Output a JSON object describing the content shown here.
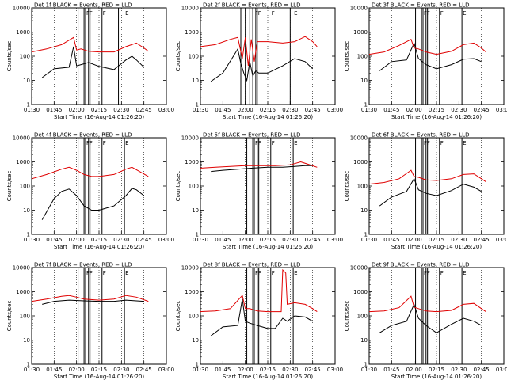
{
  "shared": {
    "title_suffix": "BLACK = Events, RED = LLD",
    "ylabel": "Counts/sec",
    "xlabel": "Start Time (16-Aug-14 01:26:20)",
    "x_ticks": [
      "01:30",
      "01:45",
      "02:00",
      "02:15",
      "02:30",
      "02:45",
      "03:00"
    ],
    "y_ticks": [
      "1",
      "10",
      "100",
      "1000",
      "10000"
    ],
    "colors": {
      "events": "#000000",
      "lld": "#e00000",
      "axis": "#000000"
    }
  },
  "chart_data": [
    {
      "type": "line",
      "title_prefix": "Det 1f",
      "ylim": [
        1,
        10000
      ],
      "yscale": "log",
      "xlim_min": [
        0,
        90
      ],
      "flag_marks": [
        "F",
        "F",
        "F",
        "E"
      ],
      "series": [
        {
          "name": "BLACK = Events",
          "color": "#000000",
          "x": [
            7,
            15,
            25,
            28,
            30,
            33,
            38,
            45,
            55,
            63,
            67,
            70,
            75
          ],
          "values": [
            13,
            30,
            35,
            250,
            40,
            45,
            55,
            38,
            28,
            70,
            100,
            70,
            35
          ]
        },
        {
          "name": "RED = LLD",
          "color": "#e00000",
          "x": [
            0,
            10,
            20,
            28,
            30,
            33,
            38,
            45,
            55,
            63,
            70,
            75,
            78
          ],
          "values": [
            150,
            200,
            300,
            600,
            180,
            200,
            160,
            150,
            150,
            250,
            350,
            220,
            160
          ]
        }
      ],
      "event_x": [
        31,
        35,
        36,
        38,
        39,
        47,
        58
      ]
    },
    {
      "type": "line",
      "title_prefix": "Det 2f",
      "ylim": [
        1,
        10000
      ],
      "yscale": "log",
      "xlim_min": [
        0,
        90
      ],
      "flag_marks": [
        "F",
        "F",
        "F",
        "E"
      ],
      "series": [
        {
          "name": "BLACK = Events",
          "color": "#000000",
          "x": [
            7,
            15,
            22,
            25,
            27,
            29,
            31,
            33,
            35,
            37,
            39,
            45,
            55,
            63,
            70,
            75
          ],
          "values": [
            9,
            20,
            100,
            200,
            50,
            20,
            10,
            60,
            15,
            25,
            20,
            20,
            40,
            80,
            60,
            30
          ]
        },
        {
          "name": "RED = LLD",
          "color": "#e00000",
          "x": [
            0,
            10,
            20,
            25,
            28,
            30,
            32,
            34,
            36,
            38,
            45,
            55,
            63,
            70,
            75,
            78
          ],
          "values": [
            250,
            300,
            500,
            600,
            80,
            600,
            40,
            500,
            60,
            400,
            400,
            350,
            400,
            650,
            400,
            250
          ]
        }
      ],
      "event_x": [
        27,
        30,
        33,
        35,
        37,
        38,
        60
      ]
    },
    {
      "type": "line",
      "title_prefix": "Det 3f",
      "ylim": [
        1,
        10000
      ],
      "yscale": "log",
      "xlim_min": [
        0,
        90
      ],
      "flag_marks": [
        "F",
        "F",
        "F",
        "E"
      ],
      "series": [
        {
          "name": "BLACK = Events",
          "color": "#000000",
          "x": [
            7,
            15,
            25,
            30,
            33,
            38,
            45,
            55,
            63,
            70,
            75
          ],
          "values": [
            25,
            60,
            70,
            350,
            80,
            45,
            30,
            45,
            75,
            80,
            60
          ]
        },
        {
          "name": "RED = LLD",
          "color": "#e00000",
          "x": [
            0,
            10,
            20,
            28,
            30,
            33,
            38,
            45,
            55,
            63,
            70,
            75,
            78
          ],
          "values": [
            120,
            150,
            280,
            500,
            220,
            200,
            150,
            120,
            160,
            300,
            350,
            220,
            150
          ]
        }
      ],
      "event_x": [
        31,
        35,
        36,
        38,
        39,
        47,
        62
      ]
    },
    {
      "type": "line",
      "title_prefix": "Det 4f",
      "ylim": [
        1,
        10000
      ],
      "yscale": "log",
      "xlim_min": [
        0,
        90
      ],
      "flag_marks": [
        "F",
        "F",
        "F",
        "E"
      ],
      "series": [
        {
          "name": "BLACK = Events",
          "color": "#000000",
          "x": [
            7,
            15,
            20,
            25,
            30,
            35,
            40,
            45,
            55,
            63,
            67,
            70,
            75
          ],
          "values": [
            4,
            30,
            60,
            75,
            40,
            15,
            10,
            10,
            15,
            40,
            80,
            70,
            40
          ]
        },
        {
          "name": "RED = LLD",
          "color": "#e00000",
          "x": [
            0,
            10,
            20,
            25,
            30,
            35,
            40,
            45,
            55,
            63,
            67,
            72,
            78
          ],
          "values": [
            200,
            300,
            500,
            600,
            450,
            300,
            250,
            250,
            300,
            500,
            600,
            400,
            250
          ]
        }
      ],
      "event_x": [
        31,
        35,
        36,
        38,
        39,
        47,
        62
      ]
    },
    {
      "type": "line",
      "title_prefix": "Det 5f",
      "ylim": [
        1,
        10000
      ],
      "yscale": "log",
      "xlim_min": [
        0,
        90
      ],
      "flag_marks": [
        "F",
        "F",
        "F",
        "E"
      ],
      "series": [
        {
          "name": "BLACK = Events",
          "color": "#000000",
          "x": [
            7,
            15,
            25,
            35,
            45,
            55,
            63,
            70,
            75
          ],
          "values": [
            400,
            450,
            500,
            550,
            600,
            600,
            650,
            700,
            700
          ]
        },
        {
          "name": "RED = LLD",
          "color": "#e00000",
          "x": [
            0,
            10,
            20,
            30,
            40,
            50,
            60,
            67,
            72,
            78
          ],
          "values": [
            550,
            600,
            650,
            700,
            700,
            700,
            750,
            1000,
            800,
            600
          ]
        }
      ],
      "event_x": [
        31,
        35,
        36,
        38,
        39,
        47,
        62
      ]
    },
    {
      "type": "line",
      "title_prefix": "Det 6f",
      "ylim": [
        1,
        10000
      ],
      "yscale": "log",
      "xlim_min": [
        0,
        90
      ],
      "flag_marks": [
        "F",
        "F",
        "F",
        "E"
      ],
      "series": [
        {
          "name": "BLACK = Events",
          "color": "#000000",
          "x": [
            7,
            15,
            25,
            30,
            33,
            38,
            45,
            55,
            63,
            70,
            75
          ],
          "values": [
            15,
            35,
            60,
            200,
            70,
            50,
            40,
            65,
            120,
            90,
            60
          ]
        },
        {
          "name": "RED = LLD",
          "color": "#e00000",
          "x": [
            0,
            10,
            20,
            28,
            30,
            33,
            38,
            45,
            55,
            63,
            70,
            75,
            78
          ],
          "values": [
            120,
            140,
            200,
            450,
            250,
            230,
            180,
            170,
            200,
            300,
            320,
            200,
            150
          ]
        }
      ],
      "event_x": [
        31,
        35,
        36,
        38,
        39,
        47,
        62
      ]
    },
    {
      "type": "line",
      "title_prefix": "Det 7f",
      "ylim": [
        1,
        10000
      ],
      "yscale": "log",
      "xlim_min": [
        0,
        90
      ],
      "flag_marks": [
        "F",
        "F",
        "F",
        "E"
      ],
      "series": [
        {
          "name": "BLACK = Events",
          "color": "#000000",
          "x": [
            7,
            15,
            25,
            35,
            45,
            55,
            63,
            70,
            75
          ],
          "values": [
            300,
            400,
            450,
            420,
            400,
            400,
            450,
            420,
            400
          ]
        },
        {
          "name": "RED = LLD",
          "color": "#e00000",
          "x": [
            0,
            10,
            20,
            25,
            30,
            35,
            45,
            55,
            63,
            70,
            78
          ],
          "values": [
            400,
            500,
            650,
            700,
            600,
            500,
            450,
            500,
            700,
            600,
            400
          ]
        }
      ],
      "event_x": [
        31,
        35,
        36,
        38,
        39,
        47,
        62
      ]
    },
    {
      "type": "line",
      "title_prefix": "Det 8f",
      "ylim": [
        1,
        10000
      ],
      "yscale": "log",
      "xlim_min": [
        0,
        90
      ],
      "flag_marks": [
        "F",
        "F",
        "F",
        "E"
      ],
      "series": [
        {
          "name": "BLACK = Events",
          "color": "#000000",
          "x": [
            7,
            15,
            25,
            28,
            30,
            33,
            38,
            45,
            50,
            55,
            58,
            63,
            70,
            75
          ],
          "values": [
            15,
            35,
            40,
            500,
            60,
            50,
            40,
            30,
            30,
            80,
            60,
            100,
            90,
            60
          ]
        },
        {
          "name": "RED = LLD",
          "color": "#e00000",
          "x": [
            0,
            10,
            20,
            28,
            30,
            33,
            38,
            45,
            50,
            54,
            55,
            57,
            58,
            63,
            70,
            75,
            78
          ],
          "values": [
            150,
            160,
            200,
            700,
            200,
            200,
            160,
            150,
            150,
            150,
            8000,
            6000,
            300,
            350,
            300,
            200,
            150
          ]
        }
      ],
      "event_x": [
        31,
        35,
        36,
        38,
        39,
        47,
        62
      ]
    },
    {
      "type": "line",
      "title_prefix": "Det 9f",
      "ylim": [
        1,
        10000
      ],
      "yscale": "log",
      "xlim_min": [
        0,
        90
      ],
      "flag_marks": [
        "F",
        "F",
        "F",
        "E"
      ],
      "series": [
        {
          "name": "BLACK = Events",
          "color": "#000000",
          "x": [
            7,
            15,
            25,
            30,
            33,
            38,
            45,
            55,
            63,
            70,
            75
          ],
          "values": [
            20,
            40,
            60,
            300,
            80,
            40,
            20,
            45,
            80,
            60,
            40
          ]
        },
        {
          "name": "RED = LLD",
          "color": "#e00000",
          "x": [
            0,
            10,
            20,
            28,
            30,
            33,
            38,
            45,
            55,
            63,
            70,
            75,
            78
          ],
          "values": [
            150,
            160,
            220,
            650,
            230,
            200,
            160,
            150,
            170,
            300,
            330,
            200,
            150
          ]
        }
      ],
      "event_x": [
        31,
        35,
        36,
        38,
        39,
        47,
        62
      ]
    }
  ]
}
